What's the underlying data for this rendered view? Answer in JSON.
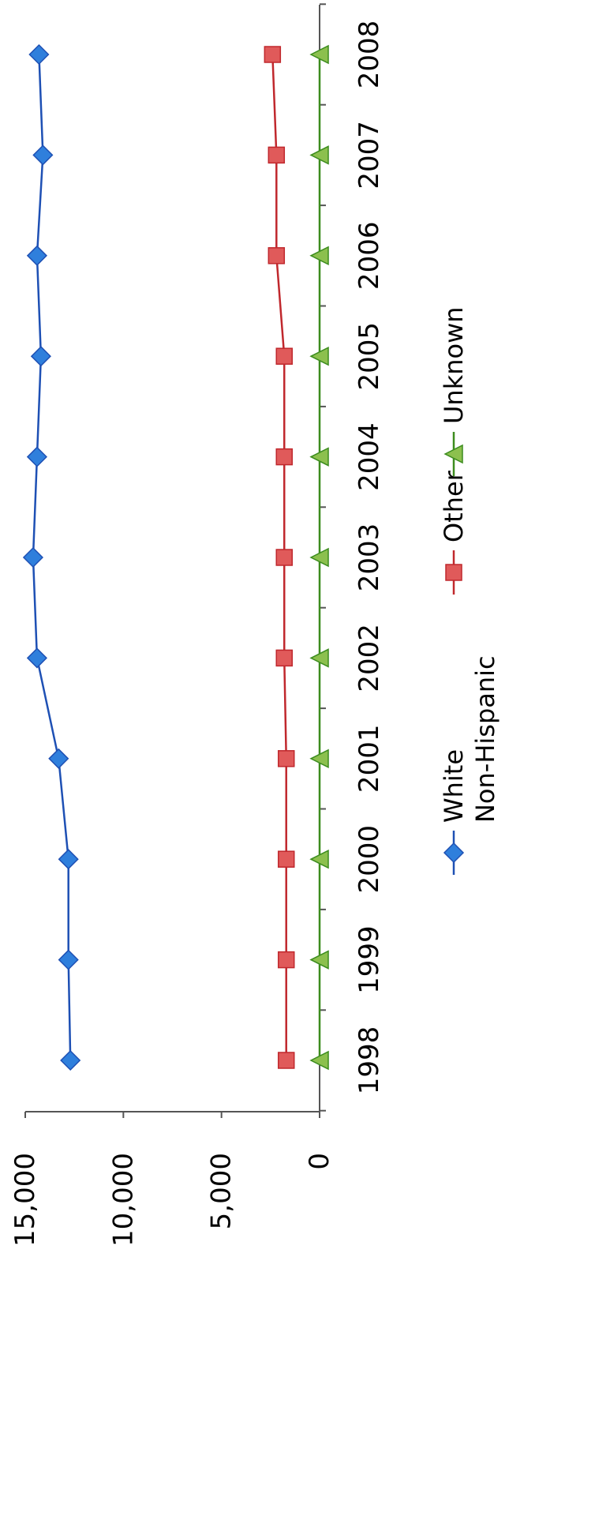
{
  "chart_data": {
    "type": "line",
    "title": "",
    "xlabel": "",
    "ylabel": "",
    "categories": [
      "1998",
      "1999",
      "2000",
      "2001",
      "2002",
      "2003",
      "2004",
      "2005",
      "2006",
      "2007",
      "2008"
    ],
    "ylim": [
      0,
      15000
    ],
    "y_ticks": [
      0,
      5000,
      10000,
      15000
    ],
    "y_tick_labels": [
      "0",
      "5,000",
      "10,000",
      "15,000"
    ],
    "grid": false,
    "legend_position": "bottom",
    "orientation": "rotated-90-clockwise",
    "series": [
      {
        "name_lines": [
          "White",
          "Non-Hispanic"
        ],
        "color": "#1e50b4",
        "marker_fill": "#2f7fdc",
        "marker": "diamond",
        "values": [
          12700,
          12800,
          12800,
          13300,
          14400,
          14600,
          14400,
          14200,
          14400,
          14100,
          14300
        ]
      },
      {
        "name_lines": [
          "Other"
        ],
        "color": "#c0282d",
        "marker_fill": "#e05a5a",
        "marker": "square",
        "values": [
          1700,
          1700,
          1700,
          1700,
          1800,
          1800,
          1800,
          1800,
          2200,
          2200,
          2400
        ]
      },
      {
        "name_lines": [
          "Unknown"
        ],
        "color": "#3c8c1e",
        "marker_fill": "#8cc04e",
        "marker": "triangle",
        "values": [
          0,
          0,
          0,
          0,
          0,
          0,
          0,
          0,
          0,
          0,
          0
        ]
      }
    ]
  }
}
